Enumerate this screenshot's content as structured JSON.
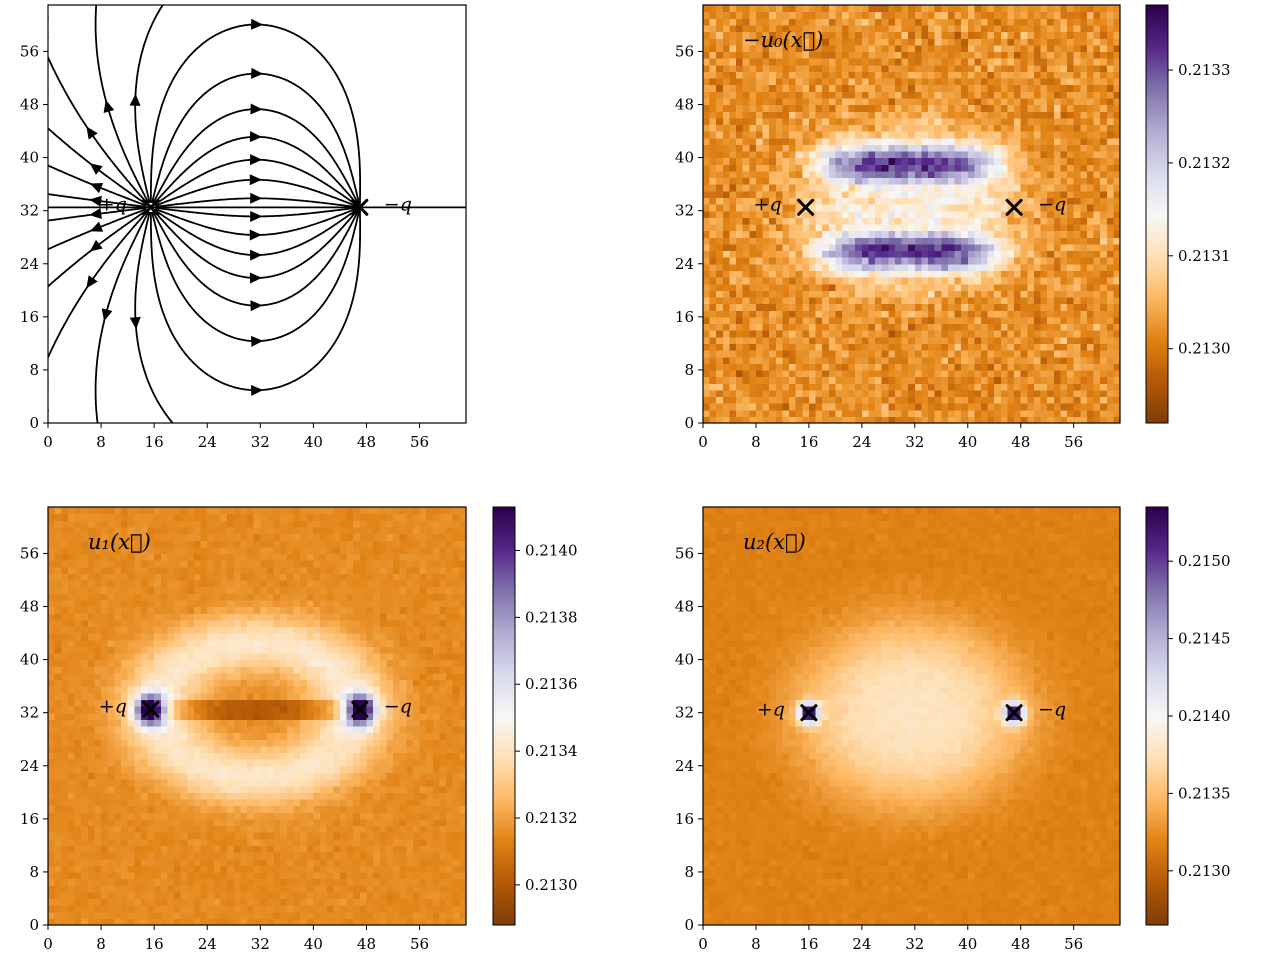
{
  "charge_labels": {
    "plus": "+q",
    "minus": "−q"
  },
  "colormap": [
    "#7f3b08",
    "#b35806",
    "#e08214",
    "#fdb863",
    "#fee0b6",
    "#f7f7f7",
    "#d8daeb",
    "#b2abd2",
    "#8073ac",
    "#542788",
    "#2d004b"
  ],
  "chart_data": [
    {
      "type": "streamplot",
      "title": "",
      "xlim": [
        0,
        63
      ],
      "ylim": [
        0,
        63
      ],
      "x_ticks": [
        "0",
        "8",
        "16",
        "24",
        "32",
        "40",
        "48",
        "56"
      ],
      "y_ticks": [
        "0",
        "8",
        "16",
        "24",
        "32",
        "40",
        "48",
        "56"
      ],
      "charges": [
        {
          "label": "+q",
          "x": 15.5,
          "y": 32.5
        },
        {
          "label": "−q",
          "x": 47.0,
          "y": 32.5
        }
      ],
      "line_color": "#000000"
    },
    {
      "type": "heatmap",
      "function_label": "−u₀(x⃗)",
      "xlim": [
        0,
        63
      ],
      "ylim": [
        0,
        63
      ],
      "x_ticks": [
        "0",
        "8",
        "16",
        "24",
        "32",
        "40",
        "48",
        "56"
      ],
      "y_ticks": [
        "0",
        "8",
        "16",
        "24",
        "32",
        "40",
        "48",
        "56"
      ],
      "charges": [
        {
          "label": "+q",
          "x": 15.5,
          "y": 32.5
        },
        {
          "label": "−q",
          "x": 47.0,
          "y": 32.5
        }
      ],
      "colorbar": {
        "min": 0.21292,
        "max": 0.21337,
        "ticks": [
          "0.2130",
          "0.2131",
          "0.2132",
          "0.2133"
        ],
        "tick_values": [
          0.213,
          0.2131,
          0.2132,
          0.2133
        ]
      },
      "pattern": "two purple lobes above and below the charge axis, orange background",
      "background_value": 0.21302,
      "peak_value": 0.21333
    },
    {
      "type": "heatmap",
      "function_label": "u₁(x⃗)",
      "xlim": [
        0,
        63
      ],
      "ylim": [
        0,
        63
      ],
      "x_ticks": [
        "0",
        "8",
        "16",
        "24",
        "32",
        "40",
        "48",
        "56"
      ],
      "y_ticks": [
        "0",
        "8",
        "16",
        "24",
        "32",
        "40",
        "48",
        "56"
      ],
      "charges": [
        {
          "label": "+q",
          "x": 15.5,
          "y": 32.5
        },
        {
          "label": "−q",
          "x": 47.0,
          "y": 32.5
        }
      ],
      "colorbar": {
        "min": 0.21288,
        "max": 0.21413,
        "ticks": [
          "0.2130",
          "0.2132",
          "0.2134",
          "0.2136",
          "0.2138",
          "0.2140"
        ],
        "tick_values": [
          0.213,
          0.2132,
          0.2134,
          0.2136,
          0.2138,
          0.214
        ]
      },
      "pattern": "light elliptical ring around charges, purple spots at charges, dark band along axis",
      "background_value": 0.21315,
      "peak_value": 0.2141
    },
    {
      "type": "heatmap",
      "function_label": "u₂(x⃗)",
      "xlim": [
        0,
        63
      ],
      "ylim": [
        0,
        63
      ],
      "x_ticks": [
        "0",
        "8",
        "16",
        "24",
        "32",
        "40",
        "48",
        "56"
      ],
      "y_ticks": [
        "0",
        "8",
        "16",
        "24",
        "32",
        "40",
        "48",
        "56"
      ],
      "charges": [
        {
          "label": "+q",
          "x": 16.0,
          "y": 32.0
        },
        {
          "label": "−q",
          "x": 47.0,
          "y": 32.0
        }
      ],
      "colorbar": {
        "min": 0.21265,
        "max": 0.21535,
        "ticks": [
          "0.2130",
          "0.2135",
          "0.2140",
          "0.2145",
          "0.2150"
        ],
        "tick_values": [
          0.213,
          0.2135,
          0.214,
          0.2145,
          0.215
        ]
      },
      "pattern": "faint light disc between charges, bright purple spots at charges",
      "background_value": 0.21318,
      "peak_value": 0.2153
    }
  ]
}
